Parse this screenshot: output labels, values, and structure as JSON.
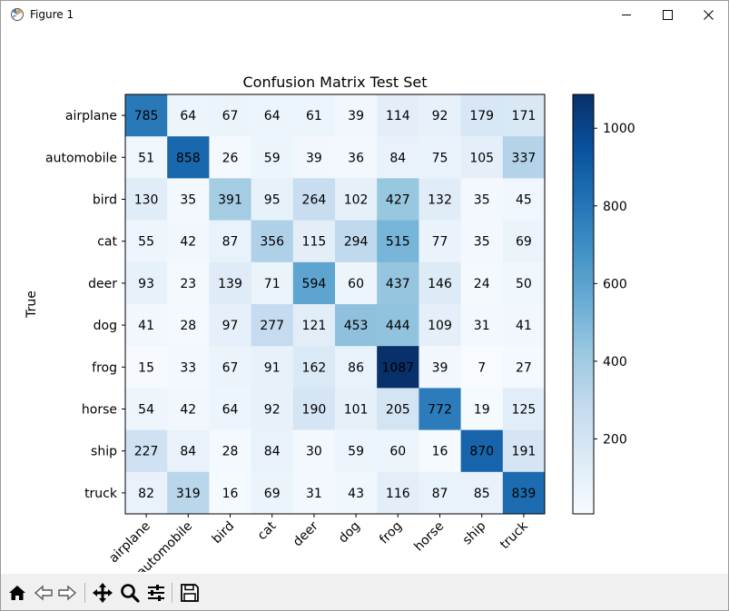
{
  "window": {
    "title": "Figure 1",
    "minimize_icon": "minimize-icon",
    "maximize_icon": "maximize-icon",
    "close_icon": "close-icon"
  },
  "toolbar": {
    "items": [
      {
        "name": "home-button",
        "icon": "home-icon"
      },
      {
        "name": "back-button",
        "icon": "back-arrow-icon"
      },
      {
        "name": "forward-button",
        "icon": "forward-arrow-icon"
      },
      {
        "name": "pan-button",
        "icon": "move-icon"
      },
      {
        "name": "zoom-button",
        "icon": "magnifier-icon"
      },
      {
        "name": "configure-subplots-button",
        "icon": "sliders-icon"
      },
      {
        "name": "save-button",
        "icon": "floppy-disk-icon"
      }
    ]
  },
  "chart_data": {
    "type": "heatmap",
    "title": "Confusion Matrix Test Set",
    "ylabel": "True",
    "xlabel": "",
    "x_categories": [
      "airplane",
      "automobile",
      "bird",
      "cat",
      "deer",
      "dog",
      "frog",
      "horse",
      "ship",
      "truck"
    ],
    "y_categories": [
      "airplane",
      "automobile",
      "bird",
      "cat",
      "deer",
      "dog",
      "frog",
      "horse",
      "ship",
      "truck"
    ],
    "values": [
      [
        785,
        64,
        67,
        64,
        61,
        39,
        114,
        92,
        179,
        171
      ],
      [
        51,
        858,
        26,
        59,
        39,
        36,
        84,
        75,
        105,
        337
      ],
      [
        130,
        35,
        391,
        95,
        264,
        102,
        427,
        132,
        35,
        45
      ],
      [
        55,
        42,
        87,
        356,
        115,
        294,
        515,
        77,
        35,
        69
      ],
      [
        93,
        23,
        139,
        71,
        594,
        60,
        437,
        146,
        24,
        50
      ],
      [
        41,
        28,
        97,
        277,
        121,
        453,
        444,
        109,
        31,
        41
      ],
      [
        15,
        33,
        67,
        91,
        162,
        86,
        1087,
        39,
        7,
        27
      ],
      [
        54,
        42,
        64,
        92,
        190,
        101,
        205,
        772,
        19,
        125
      ],
      [
        227,
        84,
        28,
        84,
        30,
        59,
        60,
        16,
        870,
        191
      ],
      [
        82,
        319,
        16,
        69,
        31,
        43,
        116,
        87,
        85,
        839
      ]
    ],
    "colormap": "Blues",
    "color_low": "#f7fbff",
    "color_high": "#08306b",
    "colorbar": {
      "min": 7,
      "max": 1087,
      "ticks": [
        200,
        400,
        600,
        800,
        1000
      ]
    }
  }
}
